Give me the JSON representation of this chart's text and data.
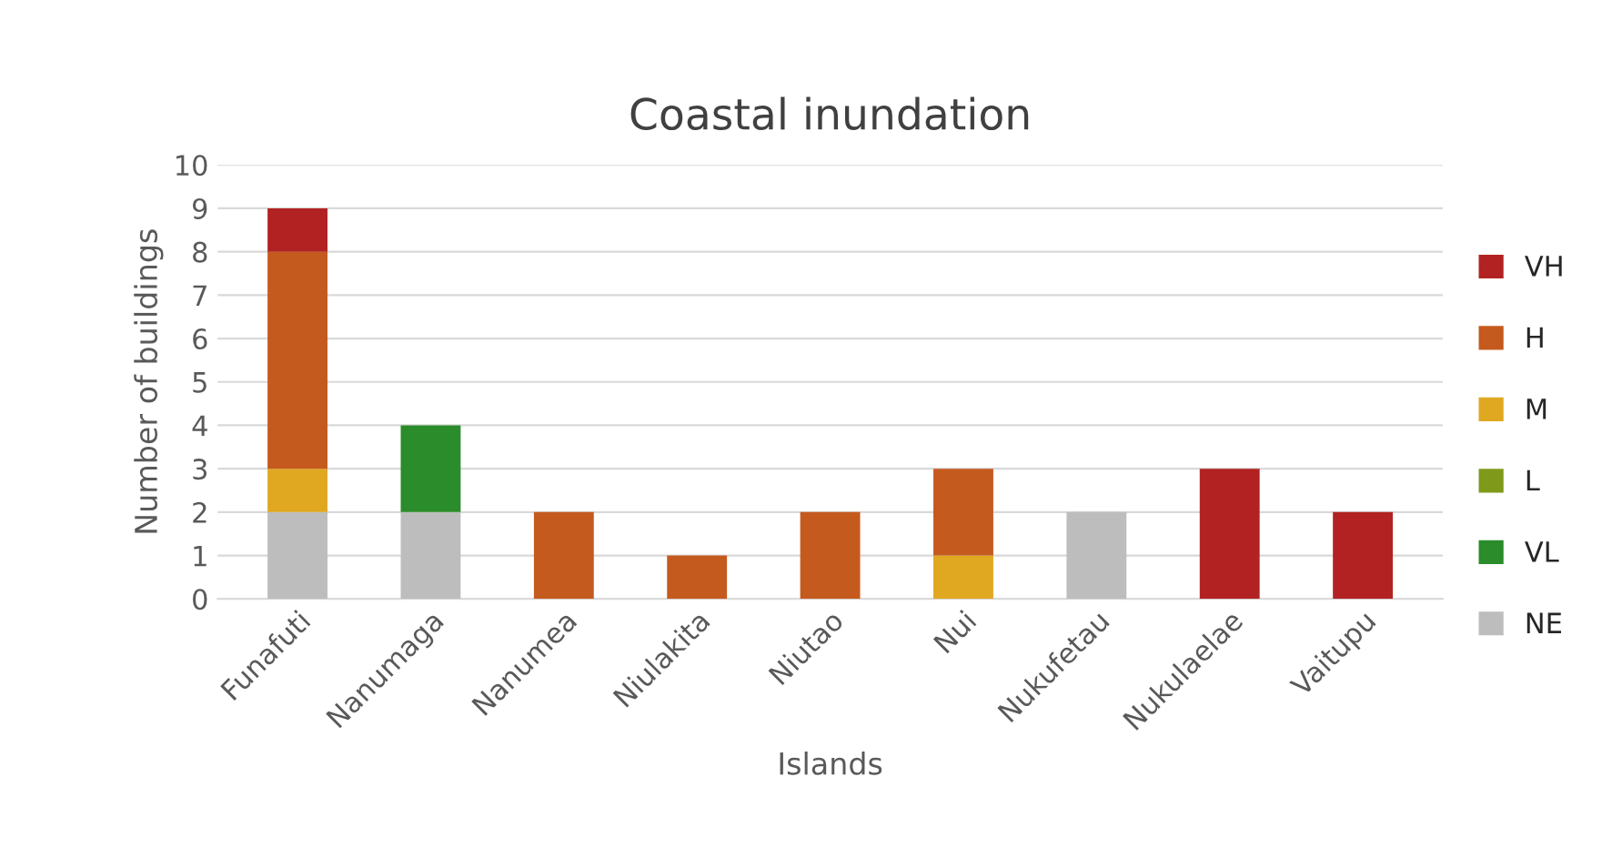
{
  "chart_data": {
    "type": "bar",
    "title": "Coastal inundation",
    "xlabel": "Islands",
    "ylabel": "Number of buildings",
    "categories": [
      "Funafuti",
      "Nanumaga",
      "Nanumea",
      "Niulakita",
      "Niutao",
      "Nui",
      "Nukufetau",
      "Nukulaelae",
      "Vaitupu"
    ],
    "stacked": true,
    "series": [
      {
        "name": "NE",
        "color": "#bdbdbd",
        "values": [
          2,
          2,
          null,
          null,
          null,
          null,
          2,
          null,
          null
        ]
      },
      {
        "name": "VL",
        "color": "#2a8c2a",
        "values": [
          null,
          2,
          null,
          null,
          null,
          null,
          null,
          null,
          null
        ]
      },
      {
        "name": "L",
        "color": "#7f9a1a",
        "values": [
          null,
          null,
          null,
          null,
          null,
          null,
          null,
          null,
          null
        ]
      },
      {
        "name": "M",
        "color": "#e0a820",
        "values": [
          1,
          null,
          null,
          null,
          null,
          1,
          null,
          null,
          null
        ]
      },
      {
        "name": "H",
        "color": "#c55a1e",
        "values": [
          5,
          null,
          2,
          1,
          2,
          2,
          null,
          null,
          null
        ]
      },
      {
        "name": "VH",
        "color": "#b22222",
        "values": [
          1,
          null,
          null,
          null,
          null,
          null,
          null,
          3,
          2
        ]
      }
    ],
    "ylim": [
      0,
      10
    ],
    "yticks": [
      0,
      1,
      2,
      3,
      4,
      5,
      6,
      7,
      8,
      9,
      10
    ],
    "grid": "y",
    "legend": "right"
  }
}
